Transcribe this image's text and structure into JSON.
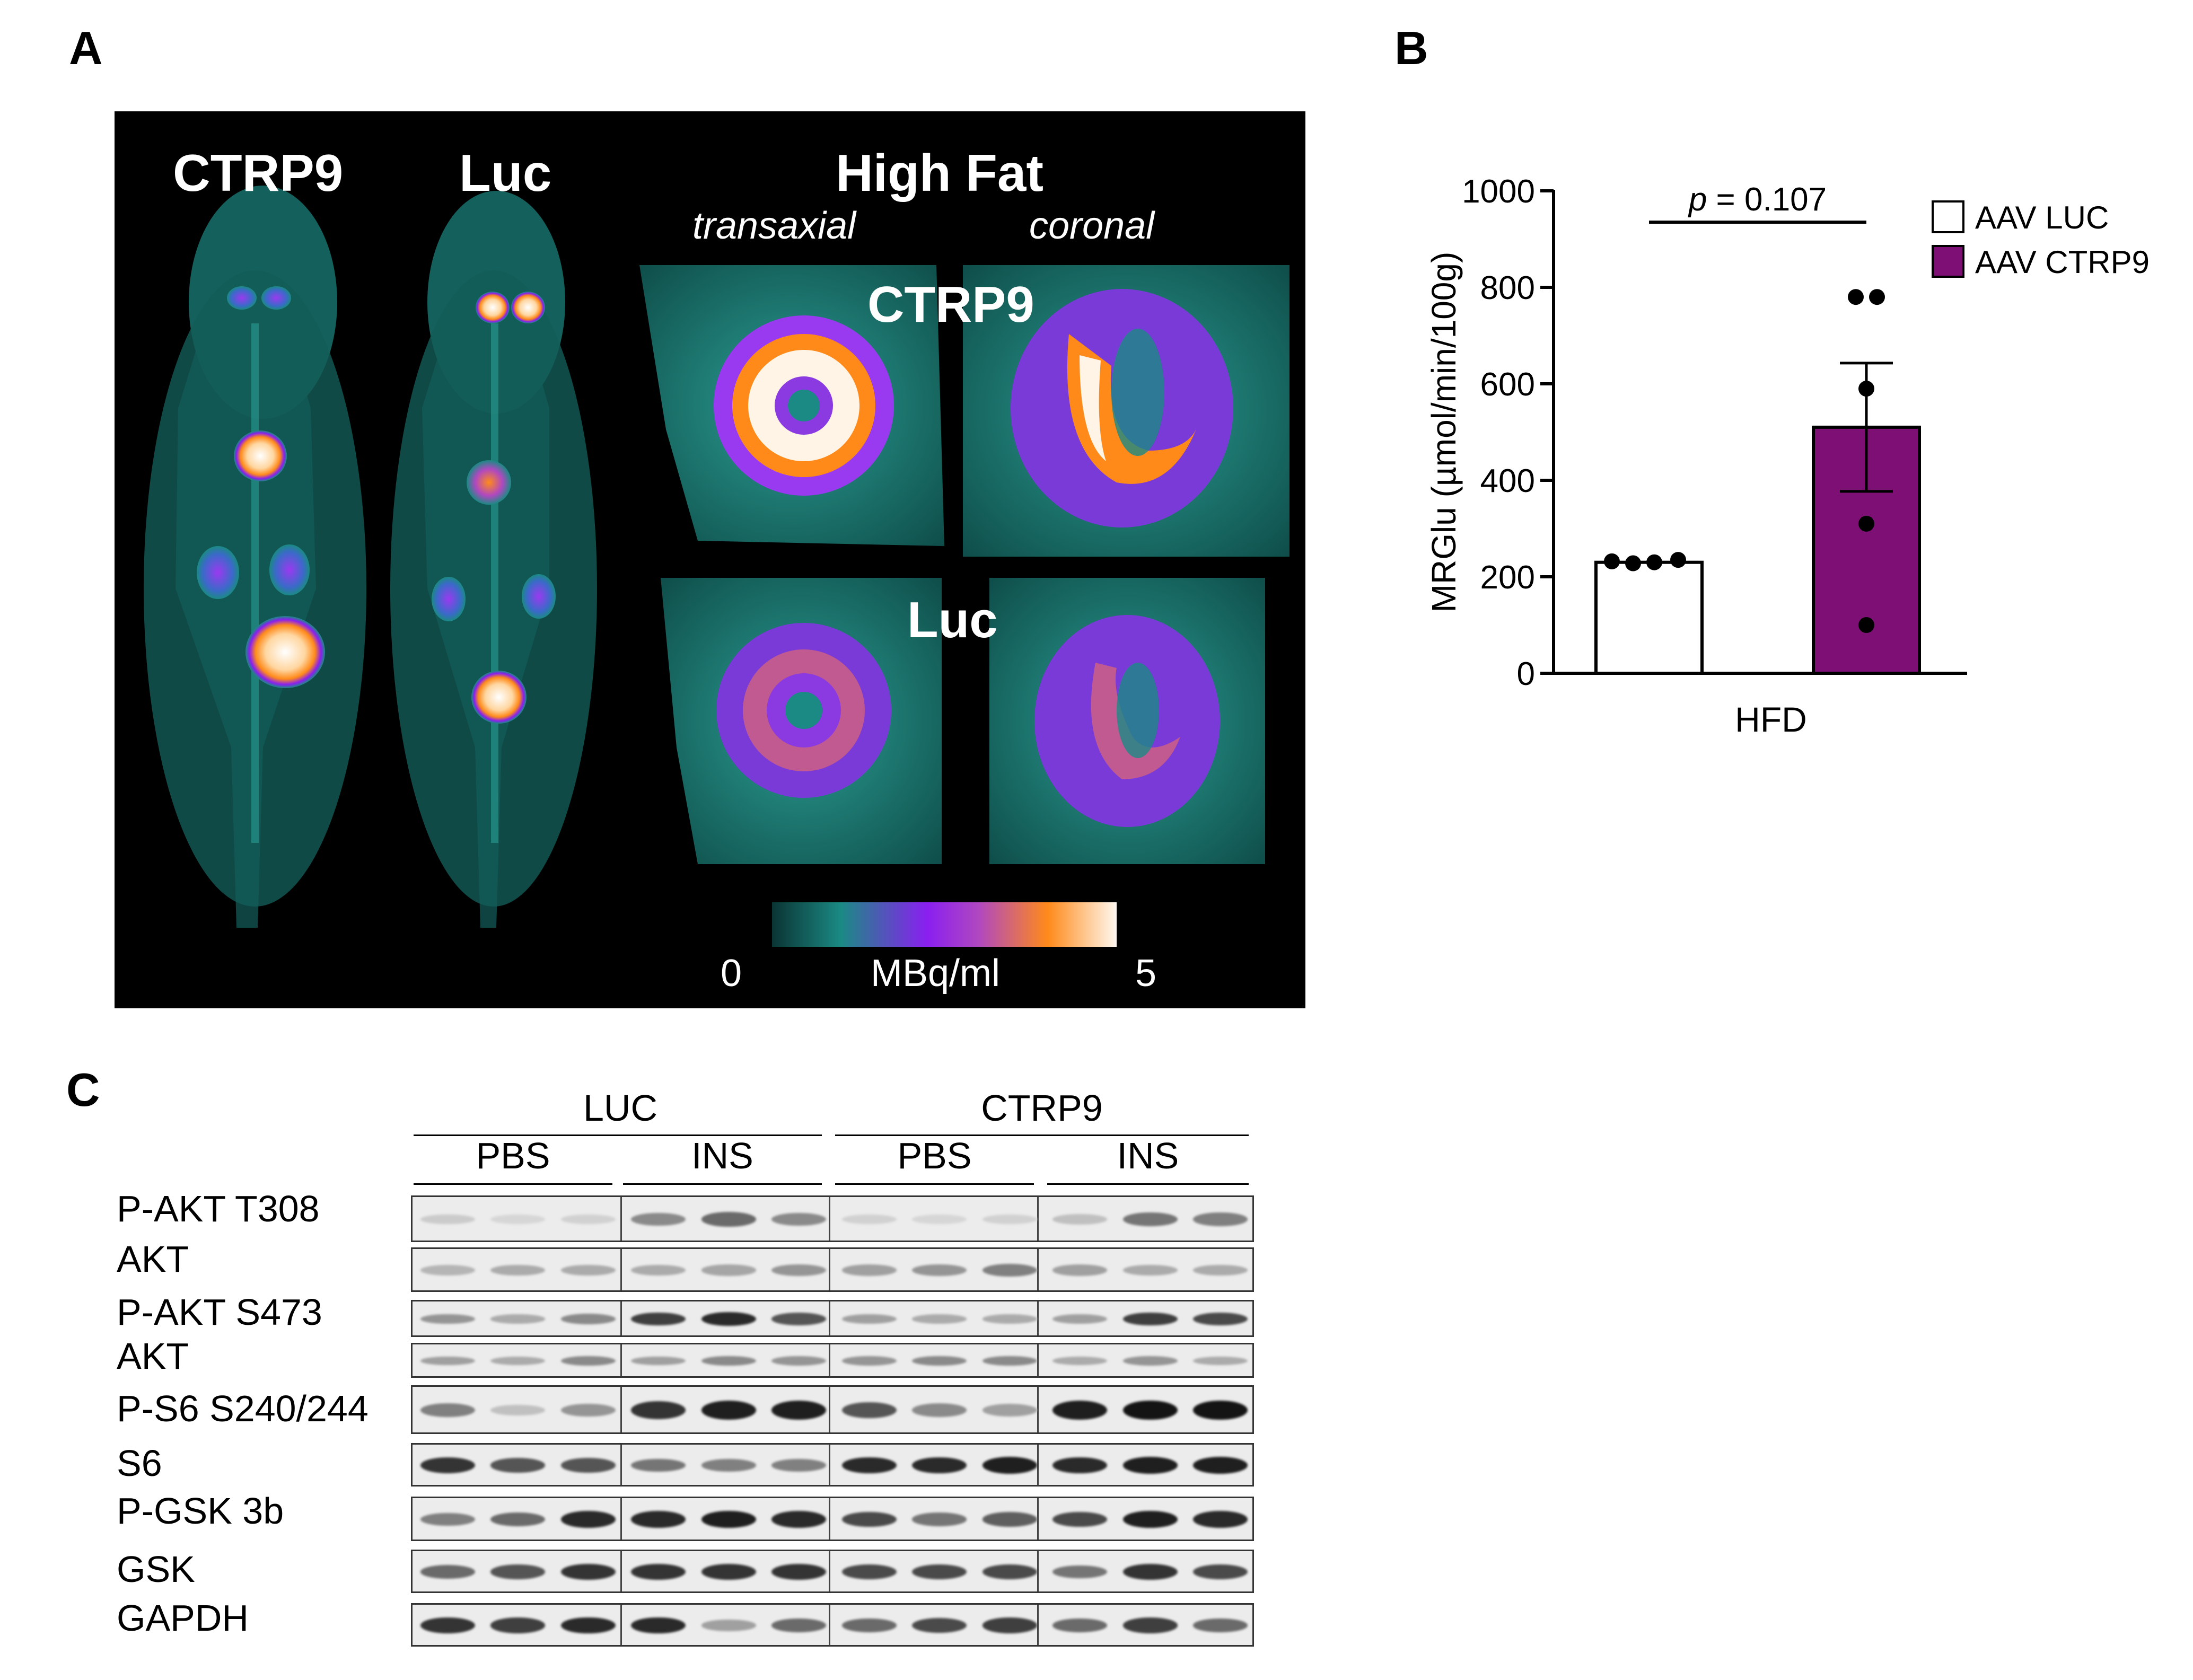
{
  "panels": {
    "a": "A",
    "b": "B",
    "c": "C"
  },
  "panel_a": {
    "col_ctrp9": "CTRP9",
    "col_luc": "Luc",
    "col_high_fat": "High Fat",
    "sub_transaxial": "transaxial",
    "sub_coronal": "coronal",
    "inner_ctrp9": "CTRP9",
    "inner_luc": "Luc",
    "scale_min": "0",
    "scale_unit": "MBq/ml",
    "scale_max": "5"
  },
  "chart_data": {
    "type": "bar",
    "categories": [
      "HFD"
    ],
    "xlabel": "HFD",
    "ylabel": "MRGlu (µmol/min/100g)",
    "ylim": [
      0,
      1000
    ],
    "yticks": [
      "0",
      "200",
      "400",
      "600",
      "800",
      "1000"
    ],
    "annotation": "p = 0.107",
    "annotation_p": "p",
    "annotation_value": "= 0.107",
    "series": [
      {
        "name": "AAV LUC",
        "value": 230,
        "error": 0,
        "points": [
          232,
          228,
          230,
          235
        ],
        "color": "#ffffff"
      },
      {
        "name": "AAV CTRP9",
        "value": 510,
        "error": 133,
        "points": [
          780,
          780,
          590,
          310,
          100
        ],
        "color": "#7e0f74"
      }
    ],
    "legend_position": "top-right"
  },
  "panel_c": {
    "groups": [
      "LUC",
      "CTRP9"
    ],
    "subgroups": [
      "PBS",
      "INS",
      "PBS",
      "INS"
    ],
    "rows": [
      "P-AKT T308",
      "AKT",
      "P-AKT S473",
      "AKT",
      "P-S6 S240/244",
      "S6",
      "P-GSK 3b",
      "GSK",
      "GAPDH"
    ],
    "intensities": [
      [
        0.15,
        0.1,
        0.12,
        0.45,
        0.6,
        0.45,
        0.12,
        0.1,
        0.12,
        0.2,
        0.55,
        0.5
      ],
      [
        0.25,
        0.3,
        0.3,
        0.3,
        0.32,
        0.4,
        0.35,
        0.4,
        0.5,
        0.35,
        0.3,
        0.3
      ],
      [
        0.4,
        0.3,
        0.45,
        0.8,
        0.9,
        0.7,
        0.35,
        0.3,
        0.3,
        0.35,
        0.8,
        0.75
      ],
      [
        0.35,
        0.3,
        0.45,
        0.35,
        0.45,
        0.4,
        0.4,
        0.45,
        0.45,
        0.3,
        0.4,
        0.3
      ],
      [
        0.5,
        0.2,
        0.4,
        0.85,
        0.95,
        0.95,
        0.7,
        0.45,
        0.35,
        0.95,
        1.0,
        1.0
      ],
      [
        0.85,
        0.7,
        0.7,
        0.55,
        0.5,
        0.5,
        0.9,
        0.9,
        0.95,
        0.9,
        0.95,
        0.95
      ],
      [
        0.5,
        0.6,
        0.9,
        0.9,
        0.95,
        0.9,
        0.75,
        0.55,
        0.65,
        0.75,
        0.95,
        0.9
      ],
      [
        0.6,
        0.7,
        0.85,
        0.85,
        0.85,
        0.85,
        0.75,
        0.75,
        0.75,
        0.55,
        0.85,
        0.75
      ],
      [
        0.85,
        0.8,
        0.9,
        0.9,
        0.35,
        0.6,
        0.6,
        0.75,
        0.8,
        0.6,
        0.8,
        0.6
      ]
    ]
  }
}
